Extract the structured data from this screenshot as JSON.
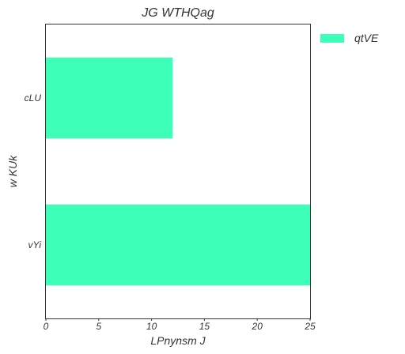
{
  "chart_data": {
    "type": "bar",
    "orientation": "horizontal",
    "title": "JG WTHQag",
    "xlabel": "LPnynsm J",
    "ylabel": "w KUk",
    "categories": [
      "cLU",
      "vYi"
    ],
    "series": [
      {
        "name": "qtVE",
        "values": [
          12,
          25
        ],
        "color": "#3dffb8"
      }
    ],
    "xlim": [
      0,
      25
    ],
    "xticks": [
      0,
      5,
      10,
      15,
      20,
      25
    ],
    "grid": false,
    "legend": "outside-top-right"
  }
}
